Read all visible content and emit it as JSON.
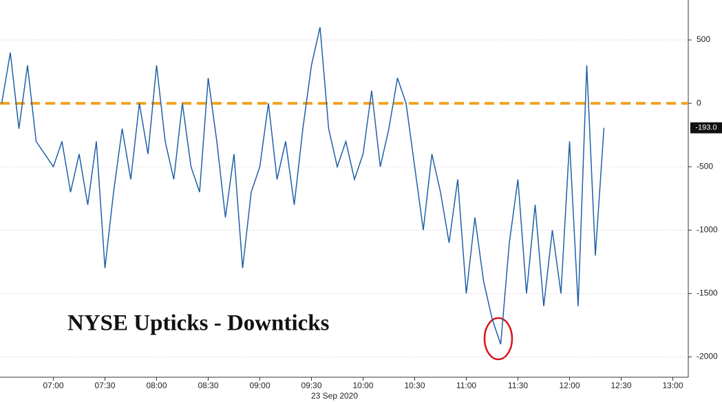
{
  "chart_data": {
    "type": "line",
    "title": "NYSE Upticks - Downticks",
    "xlabel": "23 Sep 2020",
    "x": [
      "06:30",
      "06:35",
      "06:40",
      "06:45",
      "06:50",
      "06:55",
      "07:00",
      "07:05",
      "07:10",
      "07:15",
      "07:20",
      "07:25",
      "07:30",
      "07:35",
      "07:40",
      "07:45",
      "07:50",
      "07:55",
      "08:00",
      "08:05",
      "08:10",
      "08:15",
      "08:20",
      "08:25",
      "08:30",
      "08:35",
      "08:40",
      "08:45",
      "08:50",
      "08:55",
      "09:00",
      "09:05",
      "09:10",
      "09:15",
      "09:20",
      "09:25",
      "09:30",
      "09:35",
      "09:40",
      "09:45",
      "09:50",
      "09:55",
      "10:00",
      "10:05",
      "10:10",
      "10:15",
      "10:20",
      "10:25",
      "10:30",
      "10:35",
      "10:40",
      "10:45",
      "10:50",
      "10:55",
      "11:00",
      "11:05",
      "11:10",
      "11:15",
      "11:20",
      "11:25",
      "11:30",
      "11:35",
      "11:40",
      "11:45",
      "11:50",
      "11:55",
      "12:00",
      "12:05",
      "12:10",
      "12:15",
      "12:20"
    ],
    "values": [
      0,
      400,
      -200,
      300,
      -300,
      -400,
      -500,
      -300,
      -700,
      -400,
      -800,
      -300,
      -1300,
      -700,
      -200,
      -600,
      0,
      -400,
      300,
      -300,
      -600,
      0,
      -500,
      -700,
      200,
      -300,
      -900,
      -400,
      -1300,
      -700,
      -500,
      0,
      -600,
      -300,
      -800,
      -200,
      300,
      600,
      -200,
      -500,
      -300,
      -600,
      -400,
      100,
      -500,
      -200,
      200,
      0,
      -500,
      -1000,
      -400,
      -700,
      -1100,
      -600,
      -1500,
      -900,
      -1400,
      -1700,
      -1900,
      -1100,
      -600,
      -1500,
      -800,
      -1600,
      -1000,
      -1500,
      -300,
      -1600,
      300,
      -1200,
      -193
    ],
    "value_labels": [
      null,
      null,
      null,
      null,
      null,
      null,
      null,
      null,
      null,
      null,
      null,
      null,
      null,
      null,
      null,
      null,
      null,
      null,
      null,
      null,
      null,
      null,
      null,
      null,
      null,
      null,
      null,
      null,
      null,
      null,
      null,
      null,
      null,
      null,
      null,
      null,
      null,
      null,
      null,
      null,
      null,
      null,
      null,
      null,
      null,
      null,
      null,
      null,
      null,
      null,
      null,
      null,
      null,
      null,
      null,
      null,
      null,
      null,
      null,
      null,
      null,
      null,
      null,
      null,
      null,
      null,
      null,
      null,
      null,
      null,
      "-193.0"
    ],
    "color": "#1f5fa8",
    "reference_line": {
      "value": 0,
      "color": "#f0a21e"
    },
    "xlim": [
      "06:29",
      "13:09"
    ],
    "xticks": [
      "07:00",
      "07:30",
      "08:00",
      "08:30",
      "09:00",
      "09:30",
      "10:00",
      "10:30",
      "11:00",
      "11:30",
      "12:00",
      "12:30",
      "13:00"
    ],
    "ylim": [
      -2160,
      815
    ],
    "yticks": [
      500,
      0,
      -500,
      -1000,
      -1500,
      -2000
    ],
    "grid": true
  }
}
